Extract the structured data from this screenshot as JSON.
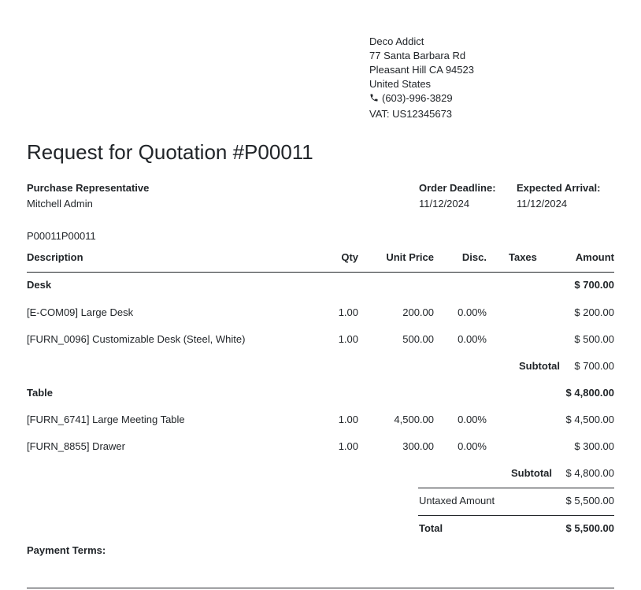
{
  "vendor": {
    "name": "Deco Addict",
    "street": "77 Santa Barbara Rd",
    "city": "Pleasant Hill CA 94523",
    "country": "United States",
    "phone_icon": "phone-icon",
    "phone": "(603)-996-3829",
    "vat": "VAT: US12345673"
  },
  "title": "Request for Quotation #P00011",
  "info": {
    "rep_label": "Purchase Representative",
    "rep_value": "Mitchell Admin",
    "deadline_label": "Order Deadline:",
    "deadline_value": "11/12/2024",
    "arrival_label": "Expected Arrival:",
    "arrival_value": "11/12/2024"
  },
  "reference": "P00011P00011",
  "table": {
    "headers": {
      "description": "Description",
      "qty": "Qty",
      "unit_price": "Unit Price",
      "disc": "Disc.",
      "taxes": "Taxes",
      "amount": "Amount"
    },
    "sections": [
      {
        "name": "Desk",
        "total": "$ 700.00",
        "lines": [
          {
            "description": "[E-COM09] Large Desk",
            "qty": "1.00",
            "unit_price": "200.00",
            "disc": "0.00%",
            "taxes": "",
            "amount": "$ 200.00"
          },
          {
            "description": "[FURN_0096] Customizable Desk (Steel, White)",
            "qty": "1.00",
            "unit_price": "500.00",
            "disc": "0.00%",
            "taxes": "",
            "amount": "$ 500.00"
          }
        ],
        "subtotal_label": "Subtotal",
        "subtotal": "$ 700.00"
      },
      {
        "name": "Table",
        "total": "$ 4,800.00",
        "lines": [
          {
            "description": "[FURN_6741] Large Meeting Table",
            "qty": "1.00",
            "unit_price": "4,500.00",
            "disc": "0.00%",
            "taxes": "",
            "amount": "$ 4,500.00"
          },
          {
            "description": "[FURN_8855] Drawer",
            "qty": "1.00",
            "unit_price": "300.00",
            "disc": "0.00%",
            "taxes": "",
            "amount": "$ 300.00"
          }
        ],
        "subtotal_label": "Subtotal",
        "subtotal": "$ 4,800.00"
      }
    ]
  },
  "totals": {
    "untaxed_label": "Untaxed Amount",
    "untaxed": "$ 5,500.00",
    "total_label": "Total",
    "total": "$ 5,500.00"
  },
  "payment_terms_label": "Payment Terms:"
}
